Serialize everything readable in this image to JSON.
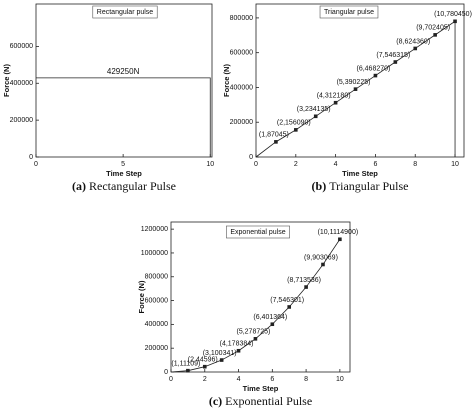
{
  "chart_data": [
    {
      "type": "line",
      "title": "Rectangular pulse",
      "annotation": "429250N",
      "x_label": "Time Step",
      "y_label": "Force (N)",
      "caption_label": "(a)",
      "caption": "Rectangular Pulse",
      "series": [
        {
          "name": "Rectangular pulse",
          "color": "#222222",
          "x": [
            0,
            10,
            10
          ],
          "values": [
            429250,
            429250,
            0
          ]
        }
      ],
      "xlim": [
        0,
        10.1
      ],
      "xticks": [
        0,
        5,
        10
      ],
      "ylim": [
        0,
        830000
      ],
      "yticks": [
        0,
        200000,
        400000,
        600000
      ],
      "grid": false
    },
    {
      "type": "line",
      "title": "Triangular pulse",
      "x_label": "Time Step",
      "y_label": "Force (N)",
      "caption_label": "(b)",
      "caption": "Triangular Pulse",
      "series": [
        {
          "name": "Triangular pulse",
          "color": "#222222",
          "x": [
            0,
            1,
            2,
            3,
            4,
            5,
            6,
            7,
            8,
            9,
            10,
            10
          ],
          "values": [
            0,
            87045,
            156090,
            234135,
            312180,
            390225,
            468270,
            546315,
            624360,
            702405,
            780450,
            0
          ],
          "value_labels": [
            null,
            "(1,87045)",
            "(2,156090)",
            "(3,234135)",
            "(4,312180)",
            "(5,390225)",
            "(6,468270)",
            "(7,546315)",
            "(8,624360)",
            "(9,702405)",
            "(10,780450)",
            null
          ]
        }
      ],
      "xlim": [
        0,
        10.45
      ],
      "xticks": [
        0,
        2,
        4,
        6,
        8,
        10
      ],
      "ylim": [
        0,
        880000
      ],
      "yticks": [
        0,
        200000,
        400000,
        600000,
        800000
      ],
      "grid": false
    },
    {
      "type": "line",
      "title": "Exponential pulse",
      "x_label": "Time Step",
      "y_label": "Force (N)",
      "caption_label": "(c)",
      "caption": "Exponential Pulse",
      "series": [
        {
          "name": "Exponential pulse",
          "color": "#222222",
          "x": [
            0,
            1,
            2,
            3,
            4,
            5,
            6,
            7,
            8,
            9,
            10
          ],
          "values": [
            0,
            11109,
            44596,
            100341,
            178384,
            278725,
            401364,
            546301,
            713536,
            903069,
            1114900
          ],
          "value_labels": [
            null,
            "(1,11109)",
            "(2,44596)",
            "(3,100341)",
            "(4,178384)",
            "(5,278725)",
            "(6,401364)",
            "(7,546301)",
            "(8,713536)",
            "(9,903069)",
            "(10,1114900)"
          ]
        }
      ],
      "xlim": [
        0,
        10.6
      ],
      "xticks": [
        0,
        2,
        4,
        6,
        8,
        10
      ],
      "ylim": [
        0,
        1260000
      ],
      "yticks": [
        0,
        200000,
        400000,
        600000,
        800000,
        1000000,
        1200000
      ],
      "grid": false
    }
  ]
}
